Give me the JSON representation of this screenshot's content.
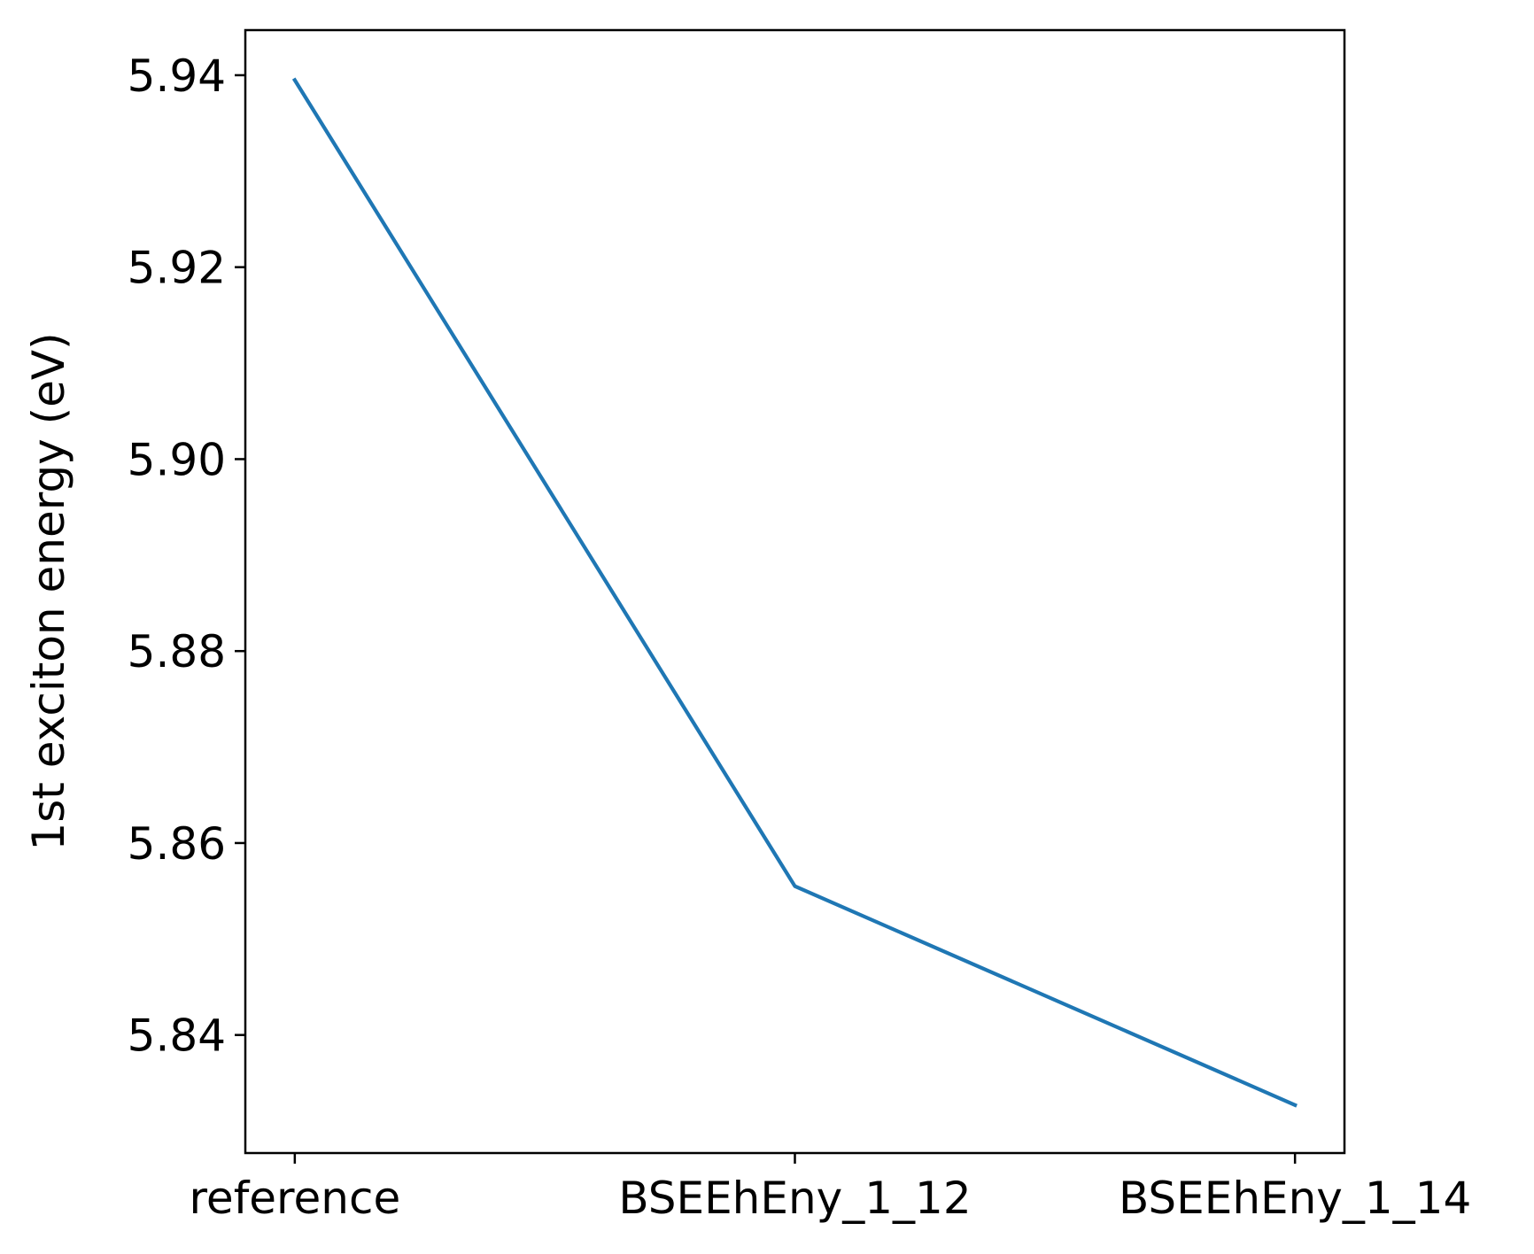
{
  "chart_data": {
    "type": "line",
    "title": "",
    "xlabel": "",
    "ylabel": "1st exciton energy (eV)",
    "categories": [
      "reference",
      "BSEEhEny_1_12",
      "BSEEhEny_1_14"
    ],
    "series": [
      {
        "values": [
          5.9395,
          5.8555,
          5.8327
        ],
        "color": "#1f77b4"
      }
    ],
    "ylim": [
      5.8277,
      5.9447
    ],
    "yticks": [
      5.84,
      5.86,
      5.88,
      5.9,
      5.92,
      5.94
    ],
    "ytick_labels": [
      "5.84",
      "5.86",
      "5.88",
      "5.90",
      "5.92",
      "5.94"
    ],
    "grid": false,
    "legend": "none"
  }
}
